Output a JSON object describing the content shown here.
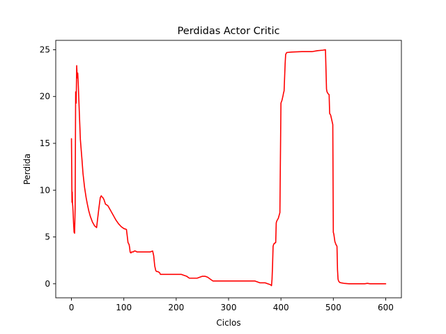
{
  "chart_data": {
    "type": "line",
    "title": "Perdidas Actor Critic",
    "xlabel": "Ciclos",
    "ylabel": "Perdida",
    "xlim": [
      -30,
      630
    ],
    "ylim": [
      -1.5,
      26.0
    ],
    "xticks": [
      0,
      100,
      200,
      300,
      400,
      500,
      600
    ],
    "yticks": [
      0,
      5,
      10,
      15,
      20,
      25
    ],
    "grid": false,
    "series": [
      {
        "color": "#ff0000",
        "x": [
          0,
          1,
          1.5,
          2,
          2.5,
          3,
          4,
          5,
          6,
          7,
          8,
          9,
          10,
          11,
          12,
          13,
          14,
          15,
          17,
          20,
          22,
          25,
          28,
          30,
          33,
          36,
          40,
          44,
          48,
          52,
          55,
          56,
          57,
          58,
          60,
          62,
          65,
          68,
          70,
          72,
          75,
          80,
          85,
          90,
          95,
          100,
          105,
          108,
          109,
          110,
          111,
          112,
          113,
          114,
          115,
          118,
          120,
          122,
          125,
          130,
          140,
          150,
          155,
          157,
          159,
          161,
          163,
          165,
          168,
          170,
          172,
          175,
          180,
          185,
          190,
          200,
          205,
          210,
          215,
          220,
          225,
          230,
          240,
          245,
          250,
          255,
          260,
          265,
          270,
          280,
          290,
          300,
          320,
          340,
          350,
          355,
          360,
          370,
          375,
          380,
          382,
          383,
          384,
          385,
          386,
          387,
          388,
          389,
          390,
          391,
          392,
          395,
          398,
          400,
          402,
          404,
          405,
          406,
          408,
          409,
          410,
          411,
          420,
          440,
          460,
          470,
          480,
          485,
          487,
          488,
          490,
          492,
          493,
          495,
          497,
          499,
          500,
          501,
          503,
          505,
          507,
          508,
          509,
          510,
          512,
          515,
          520,
          530,
          540,
          550,
          560,
          565,
          570,
          580,
          590,
          600
        ],
        "y": [
          15.5,
          8.7,
          9.8,
          8.6,
          8.3,
          7.8,
          6.5,
          5.5,
          5.4,
          8.0,
          20.5,
          19.3,
          23.3,
          22.0,
          22.5,
          21.3,
          19.8,
          18.3,
          15.4,
          13.3,
          11.8,
          10.3,
          9.2,
          8.6,
          7.8,
          7.2,
          6.6,
          6.2,
          6.0,
          7.9,
          9.2,
          9.3,
          9.4,
          9.3,
          9.2,
          9.0,
          8.5,
          8.4,
          8.3,
          8.1,
          7.8,
          7.3,
          6.8,
          6.4,
          6.1,
          5.9,
          5.8,
          4.4,
          4.3,
          4.2,
          3.9,
          3.4,
          3.3,
          3.3,
          3.4,
          3.4,
          3.5,
          3.5,
          3.4,
          3.4,
          3.4,
          3.4,
          3.5,
          3.0,
          1.9,
          1.4,
          1.3,
          1.3,
          1.2,
          1.0,
          1.0,
          1.0,
          1.0,
          1.0,
          1.0,
          1.0,
          1.0,
          1.0,
          0.9,
          0.8,
          0.6,
          0.6,
          0.6,
          0.7,
          0.8,
          0.8,
          0.7,
          0.5,
          0.3,
          0.3,
          0.3,
          0.3,
          0.3,
          0.3,
          0.3,
          0.2,
          0.1,
          0.1,
          0.0,
          -0.1,
          -0.2,
          0.5,
          2.0,
          4.0,
          4.2,
          4.3,
          4.3,
          4.4,
          4.4,
          6.5,
          6.7,
          7.0,
          7.6,
          19.3,
          19.6,
          20.1,
          20.4,
          20.6,
          23.5,
          24.5,
          24.6,
          24.7,
          24.75,
          24.8,
          24.8,
          24.9,
          24.95,
          25.0,
          20.8,
          20.5,
          20.3,
          20.2,
          18.2,
          18.0,
          17.5,
          17.0,
          5.5,
          5.3,
          4.5,
          4.2,
          4.0,
          1.5,
          0.5,
          0.3,
          0.15,
          0.1,
          0.05,
          0.0,
          0.0,
          0.0,
          0.0,
          0.05,
          0.0,
          0.0,
          0.0,
          0.0
        ]
      }
    ]
  }
}
